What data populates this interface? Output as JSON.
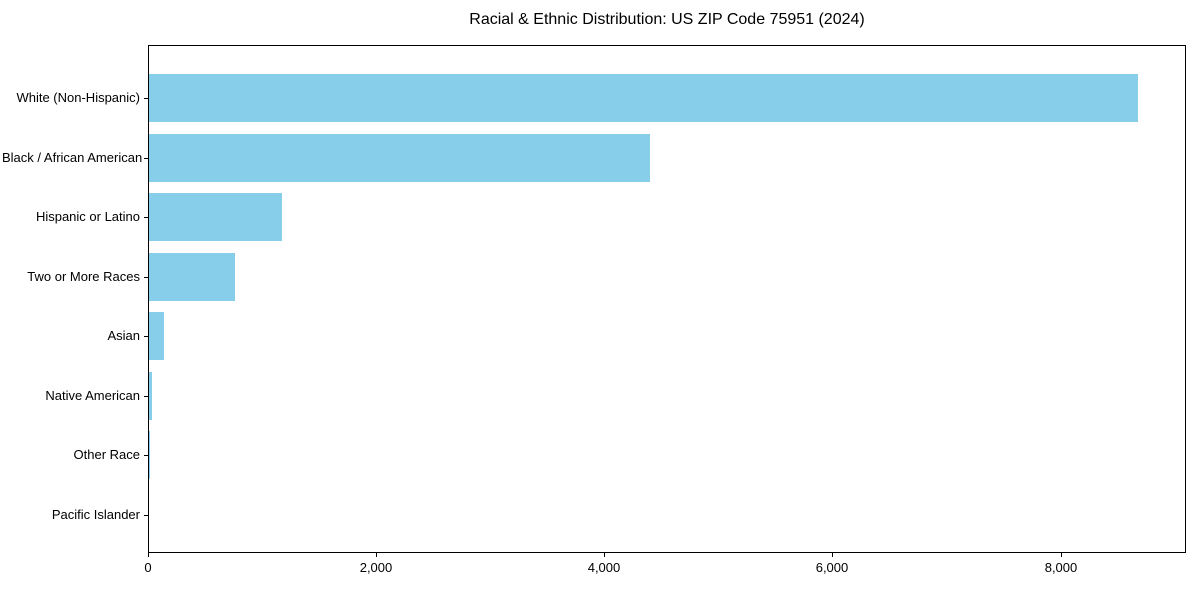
{
  "figure": {
    "background_color": "#ffffff",
    "frame_color": "#000000"
  },
  "chart_data": {
    "type": "bar",
    "orientation": "horizontal",
    "title": "Racial & Ethnic Distribution: US ZIP Code 75951 (2024)",
    "categories": [
      "White (Non-Hispanic)",
      "Black / African American",
      "Hispanic or Latino",
      "Two or More Races",
      "Asian",
      "Native American",
      "Other Race",
      "Pacific Islander"
    ],
    "values": [
      8670,
      4390,
      1170,
      750,
      130,
      25,
      10,
      0
    ],
    "xlabel": "",
    "ylabel": "",
    "xlim": [
      0,
      9100
    ],
    "xticks": [
      0,
      2000,
      4000,
      6000,
      8000
    ],
    "xtick_labels": [
      "0",
      "2,000",
      "4,000",
      "6,000",
      "8,000"
    ],
    "bar_color": "#87CEEB",
    "grid": false,
    "legend": null
  }
}
